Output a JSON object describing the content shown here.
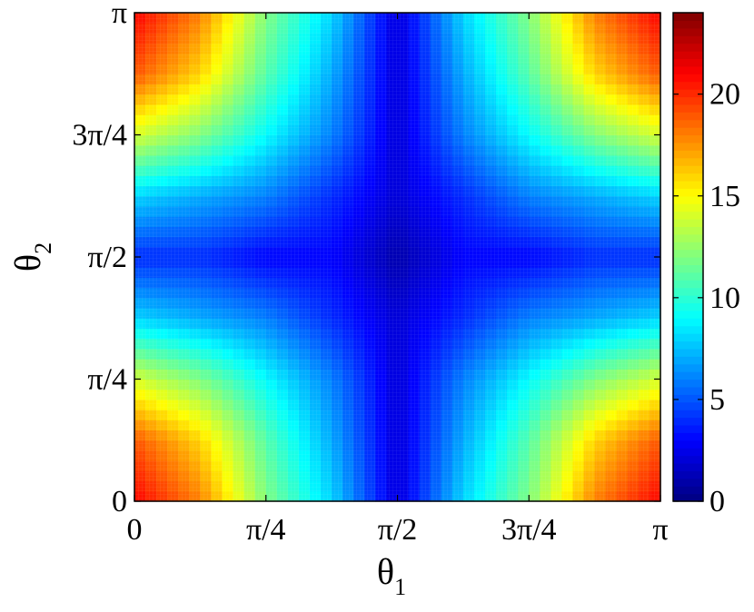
{
  "chart_data": {
    "type": "heatmap",
    "title": "",
    "xlabel": "θ",
    "xlabel_subscript": "1",
    "ylabel": "θ",
    "ylabel_subscript": "2",
    "xlim": [
      0,
      3.14159
    ],
    "ylim": [
      0,
      3.14159
    ],
    "x_ticks": [
      {
        "value": 0,
        "label": "0"
      },
      {
        "value": 0.7854,
        "label": "π/4"
      },
      {
        "value": 1.5708,
        "label": "π/2"
      },
      {
        "value": 2.3562,
        "label": "3π/4"
      },
      {
        "value": 3.14159,
        "label": "π"
      }
    ],
    "y_ticks": [
      {
        "value": 0,
        "label": "0"
      },
      {
        "value": 0.7854,
        "label": "π/4"
      },
      {
        "value": 1.5708,
        "label": "π/2"
      },
      {
        "value": 2.3562,
        "label": "3π/4"
      },
      {
        "value": 3.14159,
        "label": "π"
      }
    ],
    "colormap": "jet",
    "clim": [
      0,
      24
    ],
    "colorbar_ticks": [
      {
        "value": 0,
        "label": "0"
      },
      {
        "value": 5,
        "label": "5"
      },
      {
        "value": 10,
        "label": "10"
      },
      {
        "value": 15,
        "label": "15"
      },
      {
        "value": 20,
        "label": "20"
      }
    ],
    "grid_samples": [
      0,
      0.3927,
      0.7854,
      1.1781,
      1.5708,
      1.9635,
      2.3562,
      2.7489,
      3.14159
    ],
    "z": [
      [
        21,
        18,
        12,
        8,
        2,
        8,
        12,
        18,
        21
      ],
      [
        19,
        16,
        11,
        7,
        2,
        7,
        11,
        16,
        19
      ],
      [
        14,
        12,
        9,
        6,
        2,
        6,
        9,
        12,
        14
      ],
      [
        8,
        7,
        6,
        4,
        2,
        4,
        6,
        7,
        8
      ],
      [
        4,
        4,
        3,
        3,
        1,
        3,
        3,
        4,
        4
      ],
      [
        8,
        7,
        6,
        4,
        2,
        4,
        6,
        7,
        8
      ],
      [
        14,
        12,
        9,
        6,
        2,
        6,
        9,
        12,
        14
      ],
      [
        19,
        16,
        11,
        7,
        2,
        7,
        11,
        16,
        19
      ],
      [
        21,
        18,
        12,
        8,
        2,
        8,
        12,
        18,
        21
      ]
    ]
  }
}
